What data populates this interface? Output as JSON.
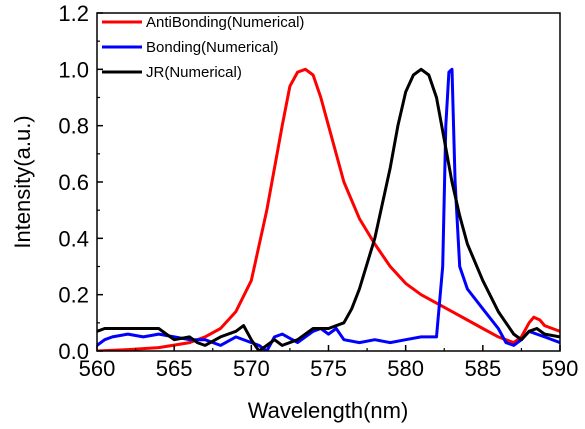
{
  "chart_data": {
    "type": "line",
    "xlabel": "Wavelength(nm)",
    "ylabel": "Intensity(a.u.)",
    "xlim": [
      560,
      590
    ],
    "ylim": [
      0.0,
      1.2
    ],
    "xticks": [
      560,
      565,
      570,
      575,
      580,
      585,
      590
    ],
    "xtick_labels": [
      "560",
      "565",
      "570",
      "575",
      "580",
      "585",
      "590"
    ],
    "yticks": [
      0.0,
      0.2,
      0.4,
      0.6,
      0.8,
      1.0,
      1.2
    ],
    "ytick_labels": [
      "0.0",
      "0.2",
      "0.4",
      "0.6",
      "0.8",
      "1.0",
      "1.2"
    ],
    "grid": false,
    "legend_position": "top-left",
    "series": [
      {
        "name": "AntiBonding(Numerical)",
        "color": "#ff0000",
        "x": [
          560,
          562,
          564,
          566,
          567,
          568,
          569,
          570,
          571,
          572,
          572.5,
          573,
          573.5,
          574,
          574.5,
          575,
          576,
          577,
          578,
          579,
          580,
          581,
          582,
          583,
          584,
          585,
          586,
          587,
          587.5,
          588,
          588.3,
          588.7,
          589,
          589.5,
          590
        ],
        "y": [
          0.0,
          0.005,
          0.012,
          0.03,
          0.05,
          0.08,
          0.14,
          0.25,
          0.5,
          0.8,
          0.94,
          0.99,
          1.0,
          0.98,
          0.9,
          0.8,
          0.6,
          0.47,
          0.38,
          0.3,
          0.24,
          0.2,
          0.17,
          0.14,
          0.11,
          0.08,
          0.05,
          0.03,
          0.05,
          0.1,
          0.12,
          0.11,
          0.09,
          0.08,
          0.07
        ]
      },
      {
        "name": "Bonding(Numerical)",
        "color": "#0000ff",
        "x": [
          560,
          560.5,
          561,
          562,
          563,
          564,
          565,
          566,
          567,
          568,
          569,
          570,
          570.5,
          571,
          571.5,
          572,
          573,
          574,
          574.5,
          575,
          575.5,
          576,
          577,
          578,
          579,
          580,
          581,
          582,
          582.4,
          582.6,
          582.8,
          583,
          583.2,
          583.5,
          584,
          585,
          586,
          586.5,
          587,
          587.5,
          588,
          588.5,
          589,
          590
        ],
        "y": [
          0.02,
          0.04,
          0.05,
          0.06,
          0.05,
          0.06,
          0.05,
          0.04,
          0.04,
          0.02,
          0.05,
          0.03,
          0.02,
          0.0,
          0.05,
          0.06,
          0.03,
          0.07,
          0.08,
          0.06,
          0.08,
          0.04,
          0.03,
          0.04,
          0.03,
          0.04,
          0.05,
          0.05,
          0.3,
          0.8,
          0.99,
          1.0,
          0.6,
          0.3,
          0.22,
          0.15,
          0.08,
          0.03,
          0.02,
          0.04,
          0.07,
          0.06,
          0.05,
          0.03
        ]
      },
      {
        "name": "JR(Numerical)",
        "color": "#000000",
        "x": [
          560,
          560.5,
          561,
          562,
          563,
          563.5,
          564,
          564.5,
          565,
          566,
          566.5,
          567,
          568,
          569,
          569.5,
          570,
          570.5,
          571,
          571.5,
          572,
          573,
          574,
          575,
          576,
          576.5,
          577,
          578,
          579,
          579.5,
          580,
          580.5,
          581,
          581.5,
          582,
          582.5,
          583,
          583.5,
          584,
          585,
          586,
          587,
          587.5,
          588,
          588.5,
          589,
          590
        ],
        "y": [
          0.07,
          0.08,
          0.08,
          0.08,
          0.08,
          0.08,
          0.08,
          0.06,
          0.04,
          0.05,
          0.03,
          0.02,
          0.05,
          0.07,
          0.09,
          0.04,
          0.0,
          0.02,
          0.04,
          0.02,
          0.04,
          0.08,
          0.08,
          0.1,
          0.15,
          0.22,
          0.4,
          0.65,
          0.8,
          0.92,
          0.98,
          1.0,
          0.98,
          0.9,
          0.75,
          0.6,
          0.48,
          0.38,
          0.25,
          0.14,
          0.06,
          0.04,
          0.07,
          0.08,
          0.06,
          0.05
        ]
      }
    ]
  }
}
